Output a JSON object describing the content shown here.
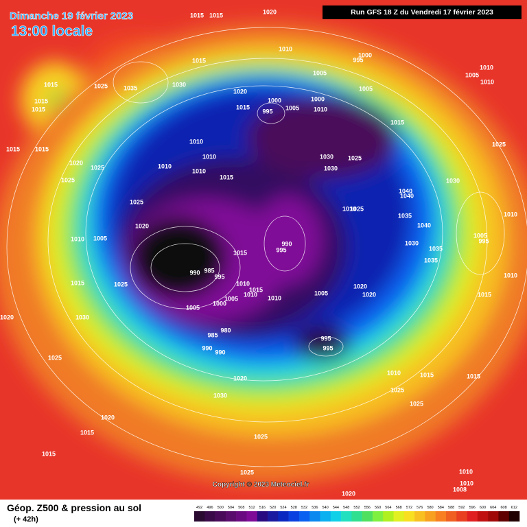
{
  "header": {
    "date": "Dimanche 19 février 2023",
    "time": "13:00 locale",
    "run": "Run GFS 18 Z du Vendredi 17 février 2023"
  },
  "footer": {
    "product": "Géop. Z500 & pression au sol",
    "lead": "(+ 42h)",
    "copyright": "Copyright © 2023 Meteociel.fr"
  },
  "legend": {
    "labels": [
      492,
      496,
      500,
      504,
      508,
      512,
      516,
      520,
      524,
      528,
      532,
      536,
      540,
      544,
      548,
      552,
      556,
      560,
      564,
      568,
      572,
      576,
      580,
      584,
      588,
      592,
      596,
      600,
      604,
      608,
      612
    ],
    "colors": [
      "#2a0a30",
      "#3a0a48",
      "#4a0a5a",
      "#5a0c6c",
      "#6a0a80",
      "#800a98",
      "#2a0a80",
      "#1a1aa0",
      "#0a28c0",
      "#0a40e0",
      "#0a60f0",
      "#0a88f0",
      "#0ab0f0",
      "#10d0e8",
      "#20e0c0",
      "#30e090",
      "#50e060",
      "#80f040",
      "#b0f020",
      "#e0f020",
      "#f8e020",
      "#f8c020",
      "#f8a020",
      "#f88020",
      "#f06020",
      "#e84020",
      "#e02020",
      "#c01010",
      "#a00808",
      "#600000",
      "#200000"
    ]
  },
  "isobars": [
    1015,
    1015,
    1020,
    1010,
    1000,
    995,
    1015,
    1005,
    1005,
    1010,
    1010,
    1005,
    1015,
    1025,
    1035,
    1030,
    1015,
    1015,
    1020,
    1000,
    995,
    1005,
    1000,
    1010,
    1015,
    1015,
    1025,
    1015,
    1015,
    1010,
    1020,
    1025,
    1010,
    1010,
    1010,
    1030,
    1030,
    1025,
    1025,
    1015,
    1030,
    1040,
    1040,
    1025,
    1010,
    1025,
    1035,
    1020,
    1040,
    1010,
    1010,
    1005,
    990,
    995,
    1005,
    995,
    1030,
    1035,
    1035,
    1015,
    990,
    985,
    995,
    1010,
    1015,
    1025,
    1010,
    1015,
    1010,
    1020,
    1020,
    1005,
    1010,
    1005,
    1000,
    1005,
    1015,
    1030,
    1020,
    980,
    985,
    995,
    990,
    995,
    990,
    1025,
    1010,
    1015,
    1020,
    1025,
    1015,
    1030,
    1025,
    1020,
    1015,
    1025,
    1015,
    1025,
    1020,
    1010,
    1010,
    1008
  ]
}
